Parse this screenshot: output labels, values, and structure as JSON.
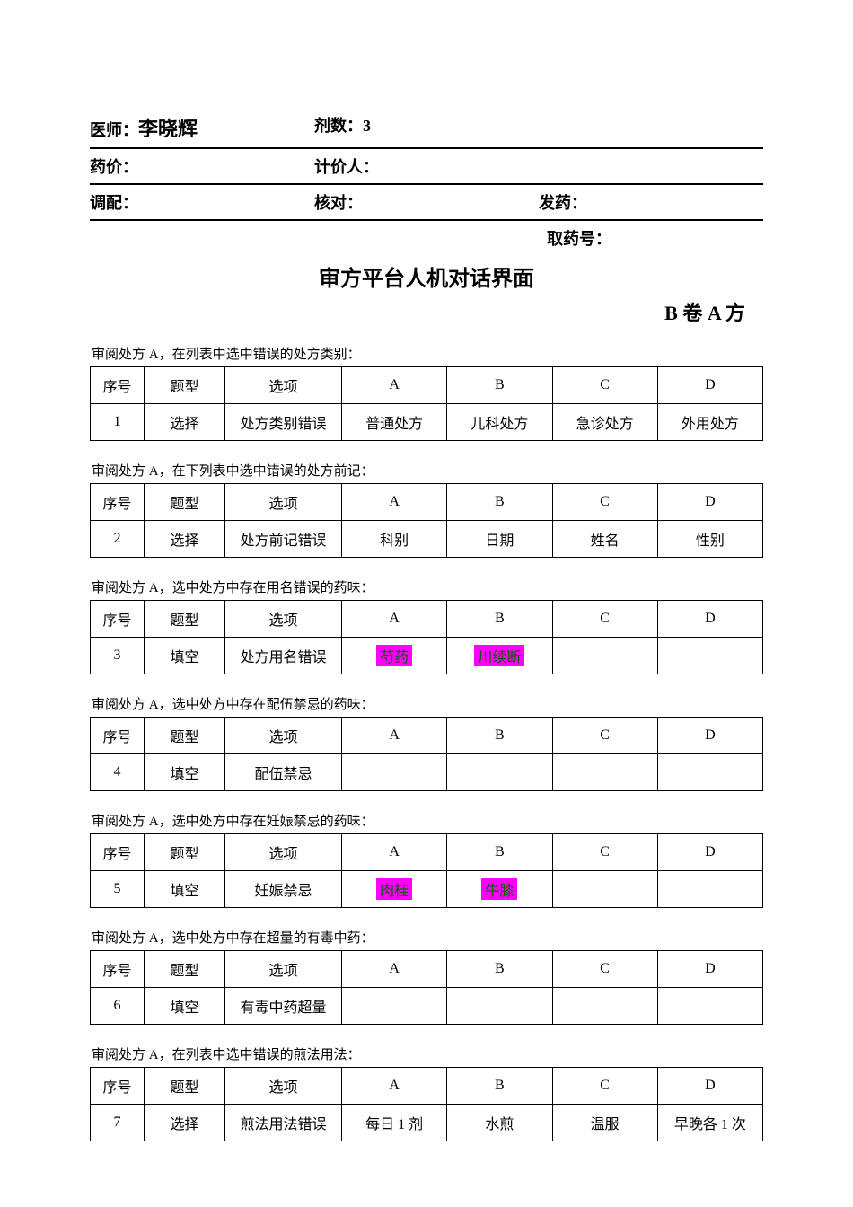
{
  "info": {
    "doctor_label": "医师：",
    "doctor_name": "李晓辉",
    "doses_label": "剂数：",
    "doses_value": "3",
    "price_label": "药价：",
    "pricer_label": "计价人：",
    "dispense_label": "调配：",
    "check_label": "核对：",
    "issue_label": "发药：",
    "pickup_label": "取药号："
  },
  "titles": {
    "main": "审方平台人机对话界面",
    "sub": "B 卷 A 方"
  },
  "headers": {
    "seq": "序号",
    "type": "题型",
    "opt": "选项",
    "A": "A",
    "B": "B",
    "C": "C",
    "D": "D"
  },
  "q1": {
    "prompt": "审阅处方 A，在列表中选中错误的处方类别：",
    "seq": "1",
    "type": "选择",
    "opt": "处方类别错误",
    "A": "普通处方",
    "B": "儿科处方",
    "C": "急诊处方",
    "D": "外用处方"
  },
  "q2": {
    "prompt": "审阅处方 A，在下列表中选中错误的处方前记：",
    "seq": "2",
    "type": "选择",
    "opt": "处方前记错误",
    "A": "科别",
    "B": "日期",
    "C": "姓名",
    "D": "性别"
  },
  "q3": {
    "prompt": "审阅处方 A，选中处方中存在用名错误的药味：",
    "seq": "3",
    "type": "填空",
    "opt": "处方用名错误",
    "A": "芍药",
    "B": "川续断",
    "C": "",
    "D": ""
  },
  "q4": {
    "prompt": "审阅处方 A，选中处方中存在配伍禁忌的药味：",
    "seq": "4",
    "type": "填空",
    "opt": "配伍禁忌",
    "A": "",
    "B": "",
    "C": "",
    "D": ""
  },
  "q5": {
    "prompt": "审阅处方 A，选中处方中存在妊娠禁忌的药味：",
    "seq": "5",
    "type": "填空",
    "opt": "妊娠禁忌",
    "A": "肉桂",
    "B": "牛膝",
    "C": "",
    "D": ""
  },
  "q6": {
    "prompt": "审阅处方 A，选中处方中存在超量的有毒中药：",
    "seq": "6",
    "type": "填空",
    "opt": "有毒中药超量",
    "A": "",
    "B": "",
    "C": "",
    "D": ""
  },
  "q7": {
    "prompt": "审阅处方 A，在列表中选中错误的煎法用法：",
    "seq": "7",
    "type": "选择",
    "opt": "煎法用法错误",
    "A": "每日 1 剂",
    "B": "水煎",
    "C": "温服",
    "D": "早晚各 1 次"
  },
  "colors": {
    "highlight_bg": "#ff00ff",
    "highlight_fg": "#006000",
    "border": "#000000",
    "background": "#ffffff"
  }
}
